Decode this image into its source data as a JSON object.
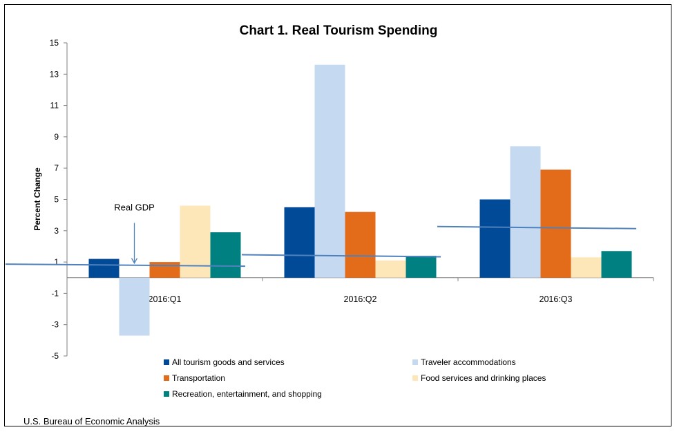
{
  "source": "U.S. Bureau of Economic Analysis",
  "chart_data": {
    "type": "bar",
    "title": "Chart 1.  Real Tourism Spending",
    "xlabel": "",
    "ylabel": "Percent Change",
    "ylim": [
      -5,
      15
    ],
    "yticks": [
      15,
      13,
      11,
      9,
      7,
      5,
      3,
      1,
      -1,
      -3,
      -5
    ],
    "grid": false,
    "legend_position": "bottom",
    "categories": [
      "2016:Q1",
      "2016:Q2",
      "2016:Q3"
    ],
    "series": [
      {
        "name": "All tourism goods and services",
        "color": "#004a97",
        "values": [
          1.2,
          4.5,
          5.0
        ]
      },
      {
        "name": "Traveler accommodations",
        "color": "#c5d9f1",
        "values": [
          -3.7,
          13.6,
          8.4
        ]
      },
      {
        "name": "Transportation",
        "color": "#e36c1a",
        "values": [
          1.0,
          4.2,
          6.9
        ]
      },
      {
        "name": "Food services and drinking places",
        "color": "#fde7b8",
        "values": [
          4.6,
          1.1,
          1.3
        ]
      },
      {
        "name": "Recreation, entertainment, and shopping",
        "color": "#008080",
        "values": [
          2.9,
          1.4,
          1.7
        ]
      }
    ],
    "real_gdp": {
      "label": "Real GDP",
      "color": "#4f81bd",
      "values": [
        0.8,
        1.4,
        3.2
      ]
    }
  }
}
